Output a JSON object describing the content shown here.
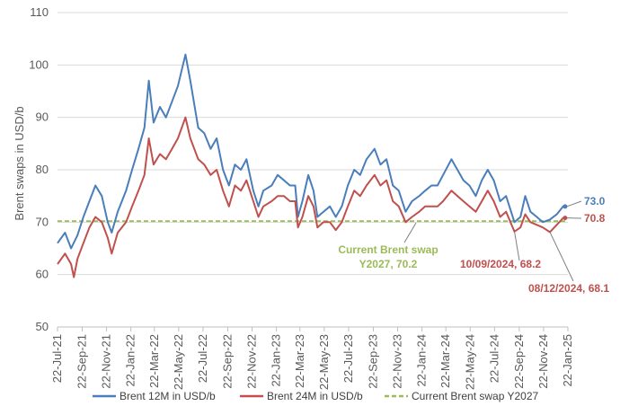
{
  "chart_data": {
    "type": "line",
    "title": "",
    "xlabel": "",
    "ylabel": "Brent swaps in USD/b",
    "ylim": [
      50,
      110
    ],
    "yticks": [
      50,
      60,
      70,
      80,
      90,
      100,
      110
    ],
    "xlim": [
      "2021-07-22",
      "2025-01-22"
    ],
    "xticks": [
      "2021-07-22",
      "2021-09-22",
      "2021-11-22",
      "2022-01-22",
      "2022-03-22",
      "2022-05-22",
      "2022-07-22",
      "2022-09-22",
      "2022-11-22",
      "2023-01-22",
      "2023-03-22",
      "2023-05-22",
      "2023-07-22",
      "2023-09-22",
      "2023-11-22",
      "2024-01-22",
      "2024-03-22",
      "2024-05-22",
      "2024-07-22",
      "2024-09-22",
      "2024-11-22",
      "2025-01-22"
    ],
    "xtick_labels": [
      "22-Jul-21",
      "22-Sep-21",
      "22-Nov-21",
      "22-Jan-22",
      "22-Mar-22",
      "22-May-22",
      "22-Jul-22",
      "22-Sep-22",
      "22-Nov-22",
      "22-Jan-23",
      "22-Mar-23",
      "22-May-23",
      "22-Jul-23",
      "22-Sep-23",
      "22-Nov-23",
      "22-Jan-24",
      "22-Mar-24",
      "22-May-24",
      "22-Jul-24",
      "22-Sep-24",
      "22-Nov-24",
      "22-Jan-25"
    ],
    "grid": true,
    "legend": "bottom",
    "series": [
      {
        "name": "Brent 12M in USD/b",
        "color": "#4a7ebb",
        "points": [
          [
            "2021-07-22",
            66
          ],
          [
            "2021-08-10",
            68
          ],
          [
            "2021-08-25",
            65
          ],
          [
            "2021-09-10",
            67.5
          ],
          [
            "2021-09-25",
            71
          ],
          [
            "2021-10-10",
            74
          ],
          [
            "2021-10-25",
            77
          ],
          [
            "2021-11-10",
            75
          ],
          [
            "2021-11-25",
            70
          ],
          [
            "2021-12-05",
            68
          ],
          [
            "2021-12-20",
            72
          ],
          [
            "2022-01-10",
            76
          ],
          [
            "2022-01-25",
            80
          ],
          [
            "2022-02-10",
            84
          ],
          [
            "2022-02-25",
            88
          ],
          [
            "2022-03-08",
            97
          ],
          [
            "2022-03-20",
            89
          ],
          [
            "2022-04-05",
            92
          ],
          [
            "2022-04-20",
            90
          ],
          [
            "2022-05-05",
            93
          ],
          [
            "2022-05-20",
            96
          ],
          [
            "2022-06-08",
            102
          ],
          [
            "2022-06-20",
            97
          ],
          [
            "2022-07-10",
            88
          ],
          [
            "2022-07-25",
            87
          ],
          [
            "2022-08-10",
            84
          ],
          [
            "2022-08-25",
            86
          ],
          [
            "2022-09-10",
            80
          ],
          [
            "2022-09-25",
            77
          ],
          [
            "2022-10-10",
            81
          ],
          [
            "2022-10-25",
            80
          ],
          [
            "2022-11-08",
            82
          ],
          [
            "2022-11-25",
            76
          ],
          [
            "2022-12-08",
            73
          ],
          [
            "2022-12-20",
            76
          ],
          [
            "2023-01-10",
            77
          ],
          [
            "2023-01-25",
            79
          ],
          [
            "2023-02-10",
            78
          ],
          [
            "2023-02-25",
            77
          ],
          [
            "2023-03-10",
            77
          ],
          [
            "2023-03-17",
            71
          ],
          [
            "2023-03-28",
            74
          ],
          [
            "2023-04-12",
            79
          ],
          [
            "2023-04-25",
            76
          ],
          [
            "2023-05-05",
            71
          ],
          [
            "2023-05-20",
            72
          ],
          [
            "2023-06-05",
            73
          ],
          [
            "2023-06-20",
            71
          ],
          [
            "2023-07-05",
            73
          ],
          [
            "2023-07-20",
            77
          ],
          [
            "2023-08-05",
            80
          ],
          [
            "2023-08-20",
            79
          ],
          [
            "2023-09-05",
            82
          ],
          [
            "2023-09-25",
            84
          ],
          [
            "2023-10-10",
            81
          ],
          [
            "2023-10-25",
            82
          ],
          [
            "2023-11-10",
            77
          ],
          [
            "2023-11-25",
            76
          ],
          [
            "2023-12-12",
            72
          ],
          [
            "2023-12-28",
            74
          ],
          [
            "2024-01-15",
            75
          ],
          [
            "2024-01-30",
            76
          ],
          [
            "2024-02-15",
            77
          ],
          [
            "2024-03-01",
            77
          ],
          [
            "2024-03-15",
            79
          ],
          [
            "2024-04-05",
            82
          ],
          [
            "2024-04-20",
            80
          ],
          [
            "2024-05-05",
            78
          ],
          [
            "2024-05-20",
            77
          ],
          [
            "2024-06-05",
            75
          ],
          [
            "2024-06-20",
            78
          ],
          [
            "2024-07-05",
            80
          ],
          [
            "2024-07-20",
            78
          ],
          [
            "2024-08-05",
            74
          ],
          [
            "2024-08-20",
            75
          ],
          [
            "2024-09-10",
            70
          ],
          [
            "2024-09-25",
            71
          ],
          [
            "2024-10-07",
            75
          ],
          [
            "2024-10-20",
            72
          ],
          [
            "2024-11-05",
            71
          ],
          [
            "2024-11-20",
            70
          ],
          [
            "2024-12-08",
            70.5
          ],
          [
            "2024-12-25",
            71.5
          ],
          [
            "2025-01-10",
            73
          ],
          [
            "2025-01-15",
            73
          ]
        ]
      },
      {
        "name": "Brent 24M in USD/b",
        "color": "#c0504d",
        "points": [
          [
            "2021-07-22",
            62
          ],
          [
            "2021-08-10",
            64
          ],
          [
            "2021-08-25",
            62
          ],
          [
            "2021-09-01",
            59.5
          ],
          [
            "2021-09-10",
            63
          ],
          [
            "2021-09-25",
            66
          ],
          [
            "2021-10-10",
            69
          ],
          [
            "2021-10-25",
            71
          ],
          [
            "2021-11-10",
            70
          ],
          [
            "2021-11-25",
            67
          ],
          [
            "2021-12-05",
            64
          ],
          [
            "2021-12-20",
            68
          ],
          [
            "2022-01-10",
            70
          ],
          [
            "2022-01-25",
            73
          ],
          [
            "2022-02-10",
            76
          ],
          [
            "2022-02-25",
            79
          ],
          [
            "2022-03-08",
            86
          ],
          [
            "2022-03-20",
            81
          ],
          [
            "2022-04-05",
            83
          ],
          [
            "2022-04-20",
            82
          ],
          [
            "2022-05-05",
            84
          ],
          [
            "2022-05-20",
            86
          ],
          [
            "2022-06-08",
            90
          ],
          [
            "2022-06-20",
            86
          ],
          [
            "2022-07-10",
            82
          ],
          [
            "2022-07-25",
            81
          ],
          [
            "2022-08-10",
            79
          ],
          [
            "2022-08-25",
            80
          ],
          [
            "2022-09-10",
            76
          ],
          [
            "2022-09-25",
            73
          ],
          [
            "2022-10-10",
            77
          ],
          [
            "2022-10-25",
            76
          ],
          [
            "2022-11-08",
            78
          ],
          [
            "2022-11-25",
            74
          ],
          [
            "2022-12-08",
            71
          ],
          [
            "2022-12-20",
            73
          ],
          [
            "2023-01-10",
            74
          ],
          [
            "2023-01-25",
            75
          ],
          [
            "2023-02-10",
            75
          ],
          [
            "2023-02-25",
            74
          ],
          [
            "2023-03-10",
            74
          ],
          [
            "2023-03-17",
            69
          ],
          [
            "2023-03-28",
            71
          ],
          [
            "2023-04-12",
            75
          ],
          [
            "2023-04-25",
            73
          ],
          [
            "2023-05-05",
            69
          ],
          [
            "2023-05-20",
            70
          ],
          [
            "2023-06-05",
            70
          ],
          [
            "2023-06-20",
            68.5
          ],
          [
            "2023-07-05",
            70
          ],
          [
            "2023-07-20",
            73
          ],
          [
            "2023-08-05",
            76
          ],
          [
            "2023-08-20",
            75
          ],
          [
            "2023-09-05",
            77
          ],
          [
            "2023-09-25",
            79
          ],
          [
            "2023-10-10",
            77
          ],
          [
            "2023-10-25",
            78
          ],
          [
            "2023-11-10",
            74
          ],
          [
            "2023-11-25",
            73
          ],
          [
            "2023-12-12",
            70
          ],
          [
            "2023-12-28",
            71
          ],
          [
            "2024-01-15",
            72
          ],
          [
            "2024-01-30",
            73
          ],
          [
            "2024-02-15",
            73
          ],
          [
            "2024-03-01",
            73
          ],
          [
            "2024-03-15",
            74
          ],
          [
            "2024-04-05",
            76
          ],
          [
            "2024-04-20",
            75
          ],
          [
            "2024-05-05",
            74
          ],
          [
            "2024-05-20",
            73
          ],
          [
            "2024-06-05",
            72
          ],
          [
            "2024-06-20",
            74
          ],
          [
            "2024-07-05",
            76
          ],
          [
            "2024-07-20",
            74
          ],
          [
            "2024-08-05",
            71
          ],
          [
            "2024-08-20",
            72
          ],
          [
            "2024-09-10",
            68.2
          ],
          [
            "2024-09-25",
            69
          ],
          [
            "2024-10-07",
            71.5
          ],
          [
            "2024-10-20",
            70
          ],
          [
            "2024-11-05",
            69.5
          ],
          [
            "2024-11-20",
            69
          ],
          [
            "2024-12-08",
            68.1
          ],
          [
            "2024-12-25",
            69.5
          ],
          [
            "2025-01-10",
            70.8
          ],
          [
            "2025-01-15",
            70.8
          ]
        ]
      }
    ],
    "reference_line": {
      "name": "Current Brent swap Y2027",
      "value": 70.2,
      "color": "#9bbb59",
      "label": [
        "Current Brent swap",
        "Y2027,  70.2"
      ],
      "label_color": "#9bbb59"
    },
    "end_labels": [
      {
        "text": "73.0",
        "color": "#4a7ebb"
      },
      {
        "text": "70.8",
        "color": "#c0504d"
      }
    ],
    "annotations": [
      {
        "text": "10/09/2024, 68.2",
        "date": "2024-09-10",
        "value": 68.2,
        "color": "#c0504d"
      },
      {
        "text": "08/12/2024, 68.1",
        "date": "2024-12-08",
        "value": 68.1,
        "color": "#c0504d"
      }
    ]
  }
}
